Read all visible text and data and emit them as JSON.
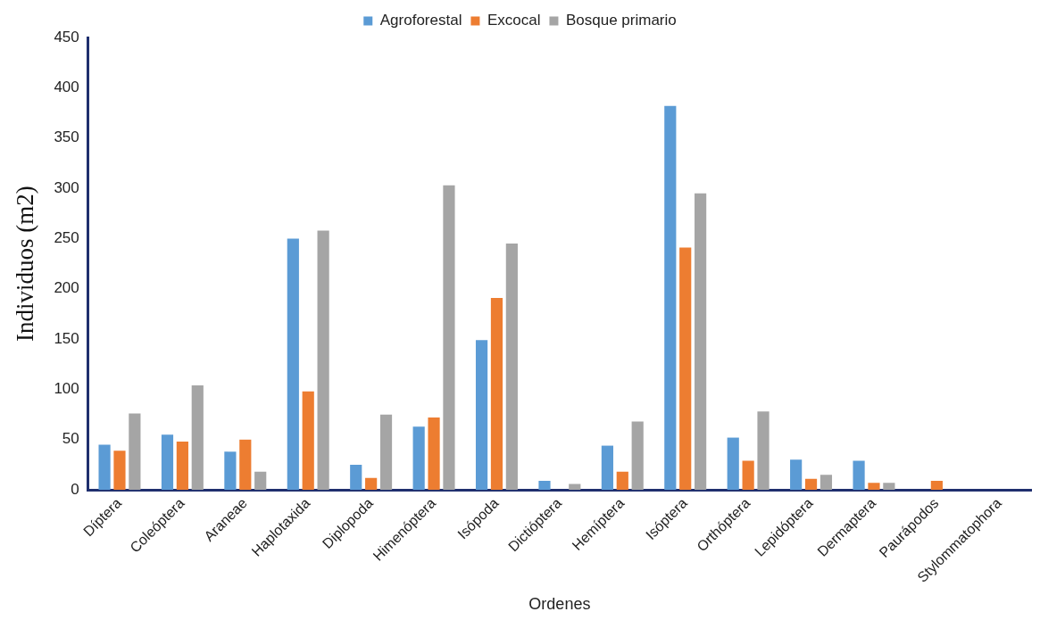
{
  "chart_data": {
    "type": "bar",
    "xlabel": "Ordenes",
    "ylabel": "Individuos (m2)",
    "categories": [
      "Díptera",
      "Coleóptera",
      "Araneae",
      "Haplotaxida",
      "Diplopoda",
      "Himenóptera",
      "Isópoda",
      "Dictióptera",
      "Hemíptera",
      "Isóptera",
      "Orthóptera",
      "Lepidóptera",
      "Dermaptera",
      "Paurápodos",
      "Stylommatophora"
    ],
    "series": [
      {
        "name": "Agroforestal",
        "color": "#5b9bd5",
        "values": [
          45,
          55,
          38,
          250,
          25,
          63,
          149,
          9,
          44,
          382,
          52,
          30,
          29,
          0,
          0
        ]
      },
      {
        "name": "Excocal",
        "color": "#ed7d31",
        "values": [
          39,
          48,
          50,
          98,
          12,
          72,
          191,
          0,
          18,
          241,
          29,
          11,
          7,
          9,
          0
        ]
      },
      {
        "name": "Bosque primario",
        "color": "#a5a5a5",
        "values": [
          76,
          104,
          18,
          258,
          75,
          303,
          245,
          6,
          68,
          295,
          78,
          15,
          7,
          0,
          0
        ]
      }
    ],
    "ylim": [
      0,
      450
    ],
    "yticks": [
      0,
      50,
      100,
      150,
      200,
      250,
      300,
      350,
      400,
      450
    ],
    "grid": false,
    "legend": "top"
  }
}
